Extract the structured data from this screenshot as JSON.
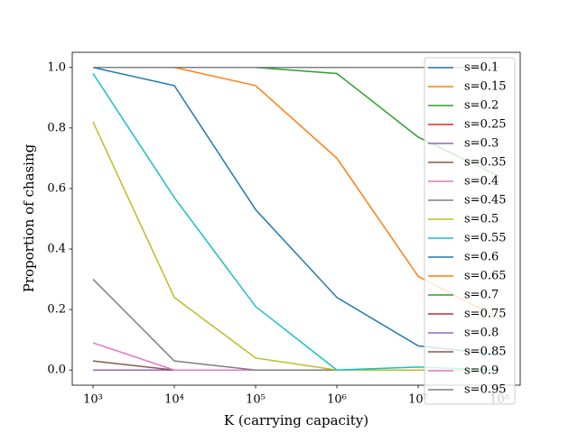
{
  "chart_data": {
    "type": "line",
    "xlabel": "K (carrying capacity)",
    "ylabel": "Proportion of chasing",
    "x": [
      1000,
      10000,
      100000,
      1000000,
      10000000,
      100000000
    ],
    "xscale": "log",
    "xlim": [
      555,
      180000000
    ],
    "xticks": [
      {
        "value": 1000,
        "label": "10³"
      },
      {
        "value": 10000,
        "label": "10⁴"
      },
      {
        "value": 100000,
        "label": "10⁵"
      },
      {
        "value": 1000000,
        "label": "10⁶"
      },
      {
        "value": 10000000,
        "label": "10⁷"
      },
      {
        "value": 100000000,
        "label": "10⁸"
      }
    ],
    "ylim": [
      -0.05,
      1.05
    ],
    "yticks": [
      {
        "value": 0,
        "label": "0.0"
      },
      0.2,
      0.4,
      0.6,
      0.8,
      {
        "value": 1,
        "label": "1.0"
      }
    ],
    "legend": "upper right",
    "series": [
      {
        "name": "s=0.1",
        "color": "#1f77b4",
        "values": [
          0,
          0,
          0,
          0,
          0,
          0
        ]
      },
      {
        "name": "s=0.15",
        "color": "#ff7f0e",
        "values": [
          0,
          0,
          0,
          0,
          0,
          0
        ]
      },
      {
        "name": "s=0.2",
        "color": "#2ca02c",
        "values": [
          0,
          0,
          0,
          0,
          0,
          0
        ]
      },
      {
        "name": "s=0.25",
        "color": "#d62728",
        "values": [
          0,
          0,
          0,
          0,
          0,
          0
        ]
      },
      {
        "name": "s=0.3",
        "color": "#9467bd",
        "values": [
          0,
          0,
          0,
          0,
          0,
          0
        ]
      },
      {
        "name": "s=0.35",
        "color": "#8c564b",
        "values": [
          0.03,
          0,
          0,
          0,
          0,
          0
        ]
      },
      {
        "name": "s=0.4",
        "color": "#e377c2",
        "values": [
          0.09,
          0,
          0,
          0,
          0,
          0
        ]
      },
      {
        "name": "s=0.45",
        "color": "#7f7f7f",
        "values": [
          0.3,
          0.03,
          0,
          0,
          0,
          0
        ]
      },
      {
        "name": "s=0.5",
        "color": "#bcbd22",
        "values": [
          0.82,
          0.24,
          0.04,
          0,
          0,
          0
        ]
      },
      {
        "name": "s=0.55",
        "color": "#17becf",
        "values": [
          0.98,
          0.57,
          0.21,
          0,
          0.01,
          0
        ]
      },
      {
        "name": "s=0.6",
        "color": "#1f77b4",
        "values": [
          1,
          0.94,
          0.53,
          0.24,
          0.08,
          0.05
        ]
      },
      {
        "name": "s=0.65",
        "color": "#ff7f0e",
        "values": [
          1,
          1,
          0.94,
          0.7,
          0.31,
          0.17
        ]
      },
      {
        "name": "s=0.7",
        "color": "#2ca02c",
        "values": [
          1,
          1,
          1,
          0.98,
          0.77,
          0.64
        ]
      },
      {
        "name": "s=0.75",
        "color": "#d62728",
        "values": [
          1,
          1,
          1,
          1,
          1,
          1
        ]
      },
      {
        "name": "s=0.8",
        "color": "#9467bd",
        "values": [
          1,
          1,
          1,
          1,
          1,
          1
        ]
      },
      {
        "name": "s=0.85",
        "color": "#8c564b",
        "values": [
          1,
          1,
          1,
          1,
          1,
          1
        ]
      },
      {
        "name": "s=0.9",
        "color": "#e377c2",
        "values": [
          1,
          1,
          1,
          1,
          1,
          1
        ]
      },
      {
        "name": "s=0.95",
        "color": "#7f7f7f",
        "values": [
          1,
          1,
          1,
          1,
          1,
          1
        ]
      }
    ]
  }
}
